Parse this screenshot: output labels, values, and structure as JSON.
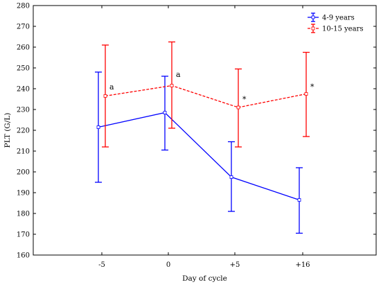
{
  "chart_data": {
    "type": "line",
    "title": "",
    "xlabel": "Day of cycle",
    "ylabel": "PLT (G/L)",
    "categories": [
      "-5",
      "0",
      "+5",
      "+16"
    ],
    "ylim": [
      160,
      280
    ],
    "yticks": [
      160,
      170,
      180,
      190,
      200,
      210,
      220,
      230,
      240,
      250,
      260,
      270,
      280
    ],
    "grid": false,
    "legend_position": "top-right",
    "series": [
      {
        "name": "4-9 years",
        "color": "#0000ff",
        "line_style": "solid",
        "values": [
          221.5,
          228.5,
          197.5,
          186.5
        ],
        "error_low": [
          195,
          210.5,
          181,
          170.5
        ],
        "error_high": [
          248,
          246,
          214.5,
          202
        ]
      },
      {
        "name": "10-15 years",
        "color": "#ff0000",
        "line_style": "dashed",
        "values": [
          236.5,
          241.5,
          231,
          237.5
        ],
        "error_low": [
          212,
          221,
          212,
          217
        ],
        "error_high": [
          261,
          262.5,
          249.5,
          257.5
        ]
      }
    ],
    "annotations": [
      {
        "category": "-5",
        "y": 241,
        "text": "a"
      },
      {
        "category": "0",
        "y": 247,
        "text": "a"
      },
      {
        "category": "+5",
        "y": 235,
        "text": "*"
      },
      {
        "category": "+16",
        "y": 241,
        "text": "*"
      }
    ]
  }
}
